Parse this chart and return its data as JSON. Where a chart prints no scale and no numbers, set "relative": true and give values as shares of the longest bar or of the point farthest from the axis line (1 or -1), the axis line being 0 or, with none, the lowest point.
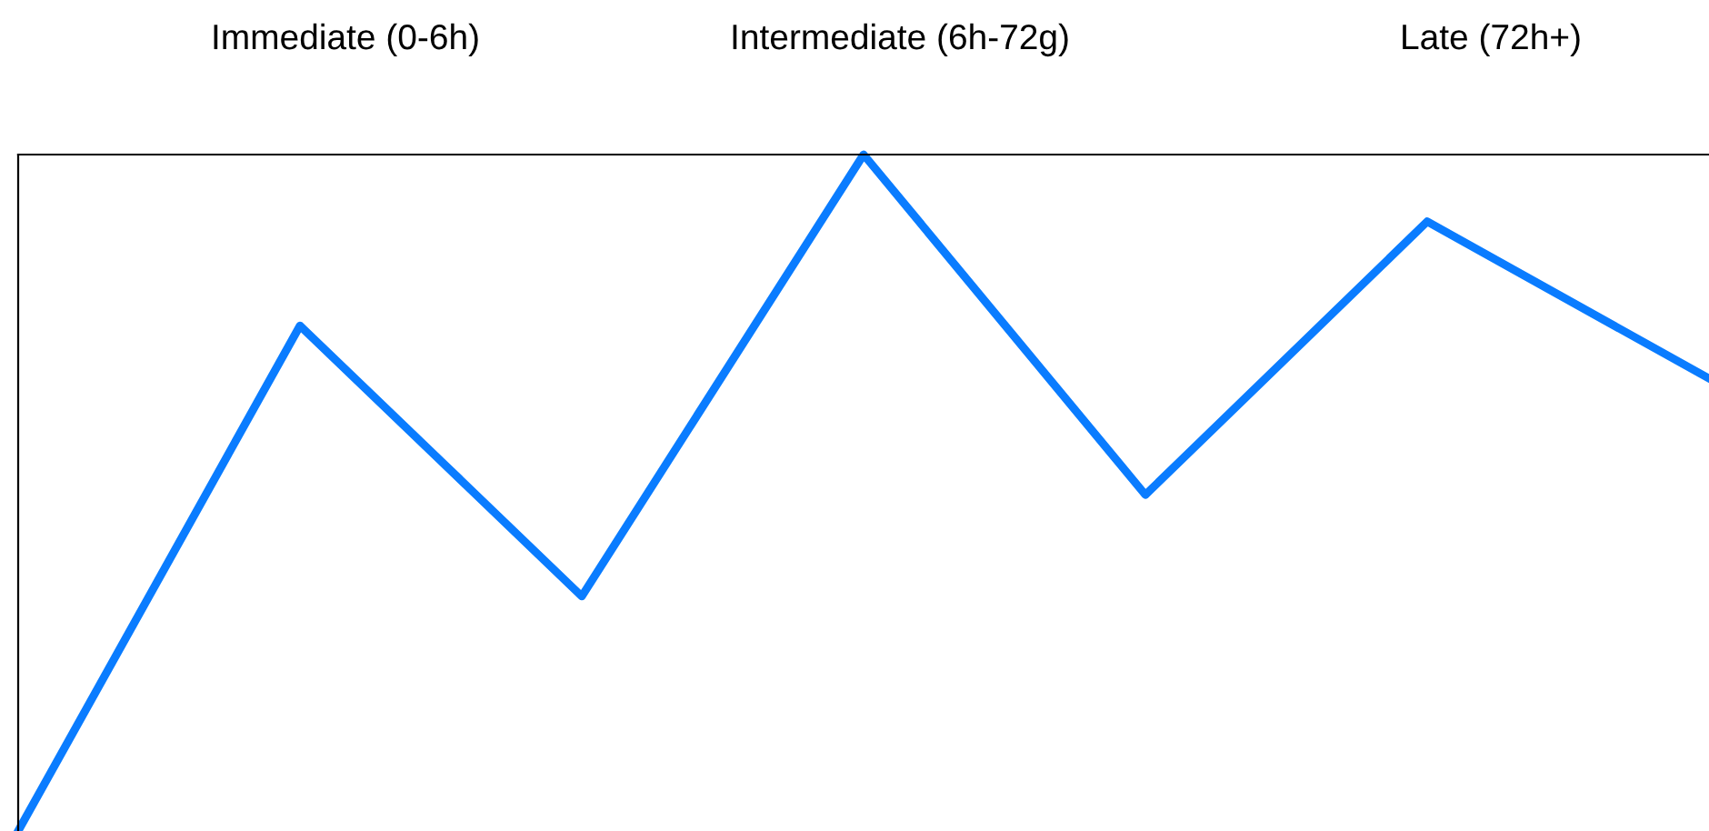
{
  "chart_data": {
    "type": "line",
    "relative": true,
    "categories": [
      null,
      null,
      null,
      null,
      null,
      null,
      null
    ],
    "series": [
      {
        "color": "#0a7cff",
        "values": [
          0,
          0.747,
          0.347,
          1,
          0.497,
          0.901,
          0.669
        ]
      }
    ],
    "annotations": [
      "Immediate (0-6h)",
      "Intermediate (6h-72g)",
      "Late (72h+)"
    ],
    "grid": false,
    "legend": false,
    "marker": "none",
    "line_style": "solid"
  }
}
